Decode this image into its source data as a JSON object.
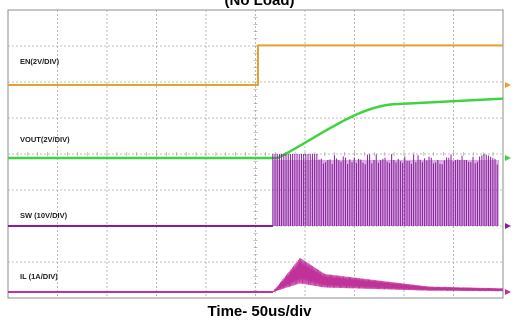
{
  "title": "(No Load)",
  "xlabel": "Time- 50us/div",
  "colors": {
    "en": "#e8a030",
    "vout": "#3fd43f",
    "sw": "#8a1aa0",
    "il": "#c0329a",
    "grid": "#a8a8a8"
  },
  "chart_data": {
    "type": "line",
    "title": "(No Load)",
    "xlabel": "Time- 50us/div",
    "x_divisions": 10,
    "y_divisions": 8,
    "series": [
      {
        "name": "EN(2V/DIV)",
        "unit": "V",
        "scale_per_div": 2,
        "points": [
          [
            0,
            0
          ],
          [
            5.05,
            0
          ],
          [
            5.05,
            2.2
          ],
          [
            10,
            2.2
          ]
        ]
      },
      {
        "name": "VOUT(2V/DIV)",
        "unit": "V",
        "scale_per_div": 2,
        "points": [
          [
            0,
            0
          ],
          [
            5.45,
            0
          ],
          [
            6.5,
            1.5
          ],
          [
            7.8,
            3.0
          ],
          [
            10,
            3.3
          ]
        ]
      },
      {
        "name": "SW (10V/DIV)",
        "unit": "V",
        "scale_per_div": 10,
        "switching_start_div": 5.35,
        "amplitude_v": 20
      },
      {
        "name": "IL (1A/DIV)",
        "unit": "A",
        "scale_per_div": 1,
        "points": [
          [
            0,
            0
          ],
          [
            5.35,
            0
          ],
          [
            5.9,
            0.95
          ],
          [
            6.4,
            0.5
          ],
          [
            8.5,
            0.15
          ],
          [
            10,
            0.1
          ]
        ]
      }
    ]
  }
}
